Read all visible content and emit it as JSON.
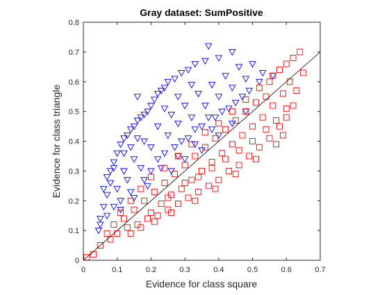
{
  "chart_data": {
    "type": "scatter",
    "title": "Gray dataset: SumPositive",
    "xlabel": "Evidence for class square",
    "ylabel": "Evidence for class triangle",
    "xlim": [
      0,
      0.7
    ],
    "ylim": [
      0,
      0.8
    ],
    "xticks": [
      "0",
      "0.1",
      "0.2",
      "0.3",
      "0.4",
      "0.5",
      "0.6",
      "0.7"
    ],
    "yticks": [
      "0",
      "0.1",
      "0.2",
      "0.3",
      "0.4",
      "0.5",
      "0.6",
      "0.7",
      "0.8"
    ],
    "grid": false,
    "reference_line": {
      "from": [
        0,
        0
      ],
      "to": [
        0.7,
        0.7
      ],
      "color": "#000000"
    },
    "series": [
      {
        "marker": "triangle-down",
        "color": "#0000ff",
        "values": [
          [
            0.045,
            0.1
          ],
          [
            0.05,
            0.14
          ],
          [
            0.06,
            0.18
          ],
          [
            0.07,
            0.22
          ],
          [
            0.08,
            0.26
          ],
          [
            0.08,
            0.3
          ],
          [
            0.09,
            0.33
          ],
          [
            0.1,
            0.36
          ],
          [
            0.11,
            0.39
          ],
          [
            0.12,
            0.41
          ],
          [
            0.13,
            0.42
          ],
          [
            0.14,
            0.44
          ],
          [
            0.15,
            0.45
          ],
          [
            0.16,
            0.47
          ],
          [
            0.17,
            0.48
          ],
          [
            0.18,
            0.49
          ],
          [
            0.19,
            0.5
          ],
          [
            0.2,
            0.52
          ],
          [
            0.21,
            0.54
          ],
          [
            0.22,
            0.56
          ],
          [
            0.23,
            0.57
          ],
          [
            0.24,
            0.58
          ],
          [
            0.25,
            0.6
          ],
          [
            0.27,
            0.61
          ],
          [
            0.29,
            0.63
          ],
          [
            0.31,
            0.64
          ],
          [
            0.33,
            0.66
          ],
          [
            0.36,
            0.67
          ],
          [
            0.4,
            0.68
          ],
          [
            0.44,
            0.7
          ],
          [
            0.37,
            0.72
          ],
          [
            0.18,
            0.4
          ],
          [
            0.22,
            0.45
          ],
          [
            0.26,
            0.49
          ],
          [
            0.3,
            0.52
          ],
          [
            0.34,
            0.56
          ],
          [
            0.38,
            0.59
          ],
          [
            0.42,
            0.62
          ],
          [
            0.46,
            0.65
          ],
          [
            0.5,
            0.66
          ],
          [
            0.12,
            0.3
          ],
          [
            0.15,
            0.34
          ],
          [
            0.2,
            0.38
          ],
          [
            0.25,
            0.42
          ],
          [
            0.28,
            0.46
          ],
          [
            0.32,
            0.48
          ],
          [
            0.36,
            0.52
          ],
          [
            0.4,
            0.55
          ],
          [
            0.44,
            0.58
          ],
          [
            0.48,
            0.61
          ],
          [
            0.1,
            0.24
          ],
          [
            0.13,
            0.27
          ],
          [
            0.17,
            0.31
          ],
          [
            0.22,
            0.34
          ],
          [
            0.27,
            0.38
          ],
          [
            0.31,
            0.41
          ],
          [
            0.35,
            0.45
          ],
          [
            0.39,
            0.48
          ],
          [
            0.43,
            0.51
          ],
          [
            0.47,
            0.55
          ],
          [
            0.07,
            0.15
          ],
          [
            0.09,
            0.18
          ],
          [
            0.11,
            0.2
          ],
          [
            0.14,
            0.23
          ],
          [
            0.18,
            0.27
          ],
          [
            0.23,
            0.31
          ],
          [
            0.28,
            0.35
          ],
          [
            0.33,
            0.39
          ],
          [
            0.38,
            0.44
          ],
          [
            0.52,
            0.6
          ],
          [
            0.05,
            0.12
          ],
          [
            0.06,
            0.24
          ],
          [
            0.07,
            0.28
          ],
          [
            0.09,
            0.31
          ],
          [
            0.12,
            0.36
          ],
          [
            0.14,
            0.38
          ],
          [
            0.16,
            0.41
          ],
          [
            0.24,
            0.51
          ],
          [
            0.28,
            0.55
          ],
          [
            0.32,
            0.59
          ],
          [
            0.2,
            0.3
          ],
          [
            0.24,
            0.36
          ],
          [
            0.29,
            0.4
          ],
          [
            0.33,
            0.44
          ],
          [
            0.37,
            0.48
          ],
          [
            0.41,
            0.5
          ],
          [
            0.45,
            0.53
          ],
          [
            0.49,
            0.57
          ],
          [
            0.53,
            0.63
          ],
          [
            0.56,
            0.62
          ],
          [
            0.11,
            0.17
          ],
          [
            0.15,
            0.21
          ],
          [
            0.19,
            0.25
          ],
          [
            0.26,
            0.3
          ],
          [
            0.3,
            0.34
          ],
          [
            0.35,
            0.37
          ],
          [
            0.4,
            0.42
          ],
          [
            0.44,
            0.46
          ],
          [
            0.48,
            0.5
          ],
          [
            0.16,
            0.55
          ]
        ]
      },
      {
        "marker": "square",
        "color": "#ff0000",
        "values": [
          [
            0.01,
            0.01
          ],
          [
            0.03,
            0.02
          ],
          [
            0.05,
            0.05
          ],
          [
            0.08,
            0.07
          ],
          [
            0.1,
            0.09
          ],
          [
            0.13,
            0.11
          ],
          [
            0.16,
            0.12
          ],
          [
            0.19,
            0.14
          ],
          [
            0.22,
            0.15
          ],
          [
            0.25,
            0.17
          ],
          [
            0.28,
            0.19
          ],
          [
            0.31,
            0.21
          ],
          [
            0.34,
            0.23
          ],
          [
            0.37,
            0.25
          ],
          [
            0.4,
            0.27
          ],
          [
            0.43,
            0.3
          ],
          [
            0.46,
            0.32
          ],
          [
            0.49,
            0.35
          ],
          [
            0.52,
            0.38
          ],
          [
            0.55,
            0.41
          ],
          [
            0.58,
            0.45
          ],
          [
            0.6,
            0.48
          ],
          [
            0.62,
            0.52
          ],
          [
            0.63,
            0.57
          ],
          [
            0.65,
            0.63
          ],
          [
            0.64,
            0.7
          ],
          [
            0.62,
            0.68
          ],
          [
            0.6,
            0.66
          ],
          [
            0.58,
            0.64
          ],
          [
            0.56,
            0.62
          ],
          [
            0.12,
            0.14
          ],
          [
            0.15,
            0.17
          ],
          [
            0.18,
            0.2
          ],
          [
            0.21,
            0.23
          ],
          [
            0.24,
            0.26
          ],
          [
            0.27,
            0.29
          ],
          [
            0.3,
            0.32
          ],
          [
            0.33,
            0.35
          ],
          [
            0.36,
            0.38
          ],
          [
            0.39,
            0.41
          ],
          [
            0.42,
            0.44
          ],
          [
            0.45,
            0.47
          ],
          [
            0.48,
            0.5
          ],
          [
            0.51,
            0.53
          ],
          [
            0.54,
            0.55
          ],
          [
            0.2,
            0.16
          ],
          [
            0.23,
            0.19
          ],
          [
            0.26,
            0.22
          ],
          [
            0.29,
            0.24
          ],
          [
            0.32,
            0.27
          ],
          [
            0.35,
            0.3
          ],
          [
            0.38,
            0.33
          ],
          [
            0.41,
            0.36
          ],
          [
            0.44,
            0.39
          ],
          [
            0.47,
            0.42
          ],
          [
            0.5,
            0.45
          ],
          [
            0.53,
            0.48
          ],
          [
            0.56,
            0.52
          ],
          [
            0.59,
            0.56
          ],
          [
            0.61,
            0.6
          ],
          [
            0.14,
            0.09
          ],
          [
            0.17,
            0.11
          ],
          [
            0.21,
            0.13
          ],
          [
            0.26,
            0.16
          ],
          [
            0.33,
            0.2
          ],
          [
            0.39,
            0.24
          ],
          [
            0.45,
            0.29
          ],
          [
            0.51,
            0.34
          ],
          [
            0.57,
            0.39
          ],
          [
            0.59,
            0.42
          ],
          [
            0.07,
            0.09
          ],
          [
            0.09,
            0.12
          ],
          [
            0.11,
            0.16
          ],
          [
            0.14,
            0.2
          ],
          [
            0.17,
            0.24
          ],
          [
            0.2,
            0.28
          ],
          [
            0.24,
            0.31
          ],
          [
            0.28,
            0.35
          ],
          [
            0.32,
            0.39
          ],
          [
            0.36,
            0.43
          ],
          [
            0.4,
            0.46
          ],
          [
            0.44,
            0.5
          ],
          [
            0.48,
            0.54
          ],
          [
            0.52,
            0.58
          ],
          [
            0.55,
            0.6
          ],
          [
            0.25,
            0.21
          ],
          [
            0.3,
            0.26
          ],
          [
            0.34,
            0.28
          ],
          [
            0.38,
            0.31
          ],
          [
            0.42,
            0.34
          ],
          [
            0.46,
            0.37
          ],
          [
            0.5,
            0.4
          ],
          [
            0.54,
            0.44
          ],
          [
            0.57,
            0.47
          ],
          [
            0.6,
            0.51
          ]
        ]
      }
    ]
  }
}
